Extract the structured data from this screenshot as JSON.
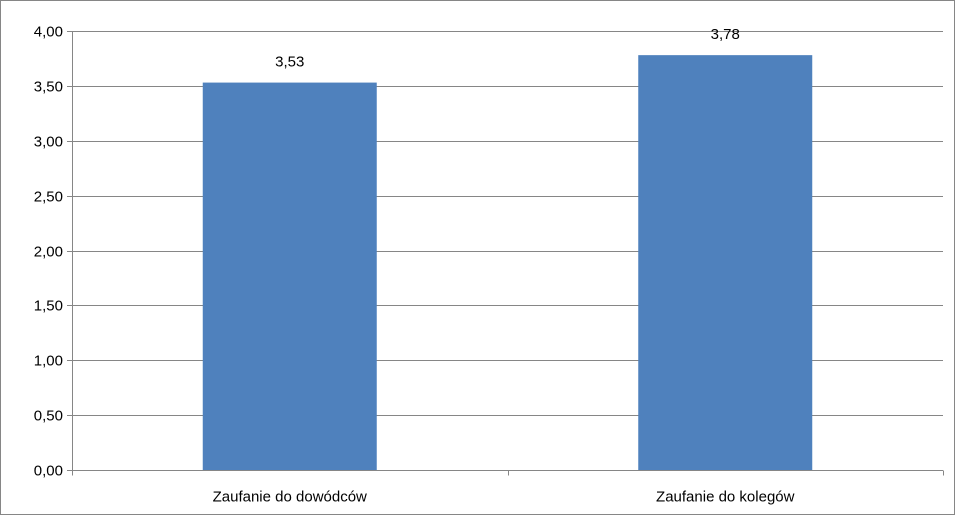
{
  "chart_data": {
    "type": "bar",
    "categories": [
      "Zaufanie do dowódców",
      "Zaufanie do kolegów"
    ],
    "values": [
      3.53,
      3.78
    ],
    "value_labels": [
      "3,53",
      "3,78"
    ],
    "ylim": [
      0,
      4
    ],
    "yticks": [
      0,
      0.5,
      1,
      1.5,
      2,
      2.5,
      3,
      3.5,
      4
    ],
    "ytick_labels": [
      "0,00",
      "0,50",
      "1,00",
      "1,50",
      "2,00",
      "2,50",
      "3,00",
      "3,50",
      "4,00"
    ],
    "grid": true,
    "legend": "none",
    "title": "",
    "xlabel": "",
    "ylabel": "",
    "colors": {
      "bar": "#4f81bd",
      "grid": "#868686",
      "axis": "#868686",
      "frame": "#868686"
    }
  }
}
